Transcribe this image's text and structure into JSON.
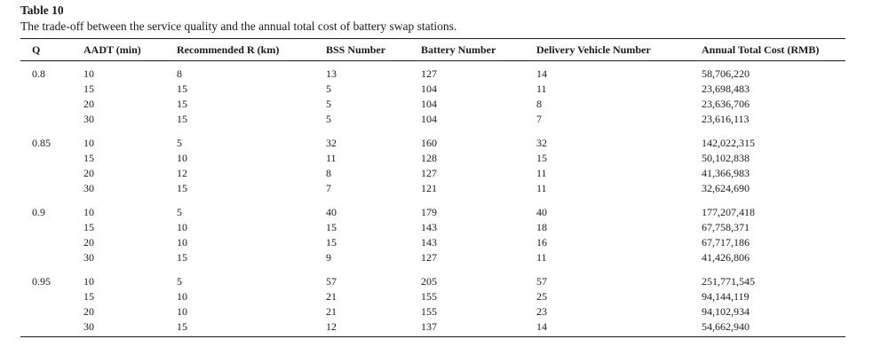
{
  "caption": {
    "title": "Table 10",
    "text": "The trade-off between the service quality and the annual total cost of battery swap stations."
  },
  "columns": [
    "Q",
    "AADT (min)",
    "Recommended R (km)",
    "BSS Number",
    "Battery Number",
    "Delivery Vehicle Number",
    "Annual Total Cost (RMB)"
  ],
  "groups": [
    {
      "q": "0.8",
      "rows": [
        [
          "10",
          "8",
          "13",
          "127",
          "14",
          "58,706,220"
        ],
        [
          "15",
          "15",
          "5",
          "104",
          "11",
          "23,698,483"
        ],
        [
          "20",
          "15",
          "5",
          "104",
          "8",
          "23,636,706"
        ],
        [
          "30",
          "15",
          "5",
          "104",
          "7",
          "23,616,113"
        ]
      ]
    },
    {
      "q": "0.85",
      "rows": [
        [
          "10",
          "5",
          "32",
          "160",
          "32",
          "142,022,315"
        ],
        [
          "15",
          "10",
          "11",
          "128",
          "15",
          "50,102,838"
        ],
        [
          "20",
          "12",
          "8",
          "127",
          "11",
          "41,366,983"
        ],
        [
          "30",
          "15",
          "7",
          "121",
          "11",
          "32,624,690"
        ]
      ]
    },
    {
      "q": "0.9",
      "rows": [
        [
          "10",
          "5",
          "40",
          "179",
          "40",
          "177,207,418"
        ],
        [
          "15",
          "10",
          "15",
          "143",
          "18",
          "67,758,371"
        ],
        [
          "20",
          "10",
          "15",
          "143",
          "16",
          "67,717,186"
        ],
        [
          "30",
          "15",
          "9",
          "127",
          "11",
          "41,426,806"
        ]
      ]
    },
    {
      "q": "0.95",
      "rows": [
        [
          "10",
          "5",
          "57",
          "205",
          "57",
          "251,771,545"
        ],
        [
          "15",
          "10",
          "21",
          "155",
          "25",
          "94,144,119"
        ],
        [
          "20",
          "10",
          "21",
          "155",
          "23",
          "94,102,934"
        ],
        [
          "30",
          "15",
          "12",
          "137",
          "14",
          "54,662,940"
        ]
      ]
    }
  ]
}
